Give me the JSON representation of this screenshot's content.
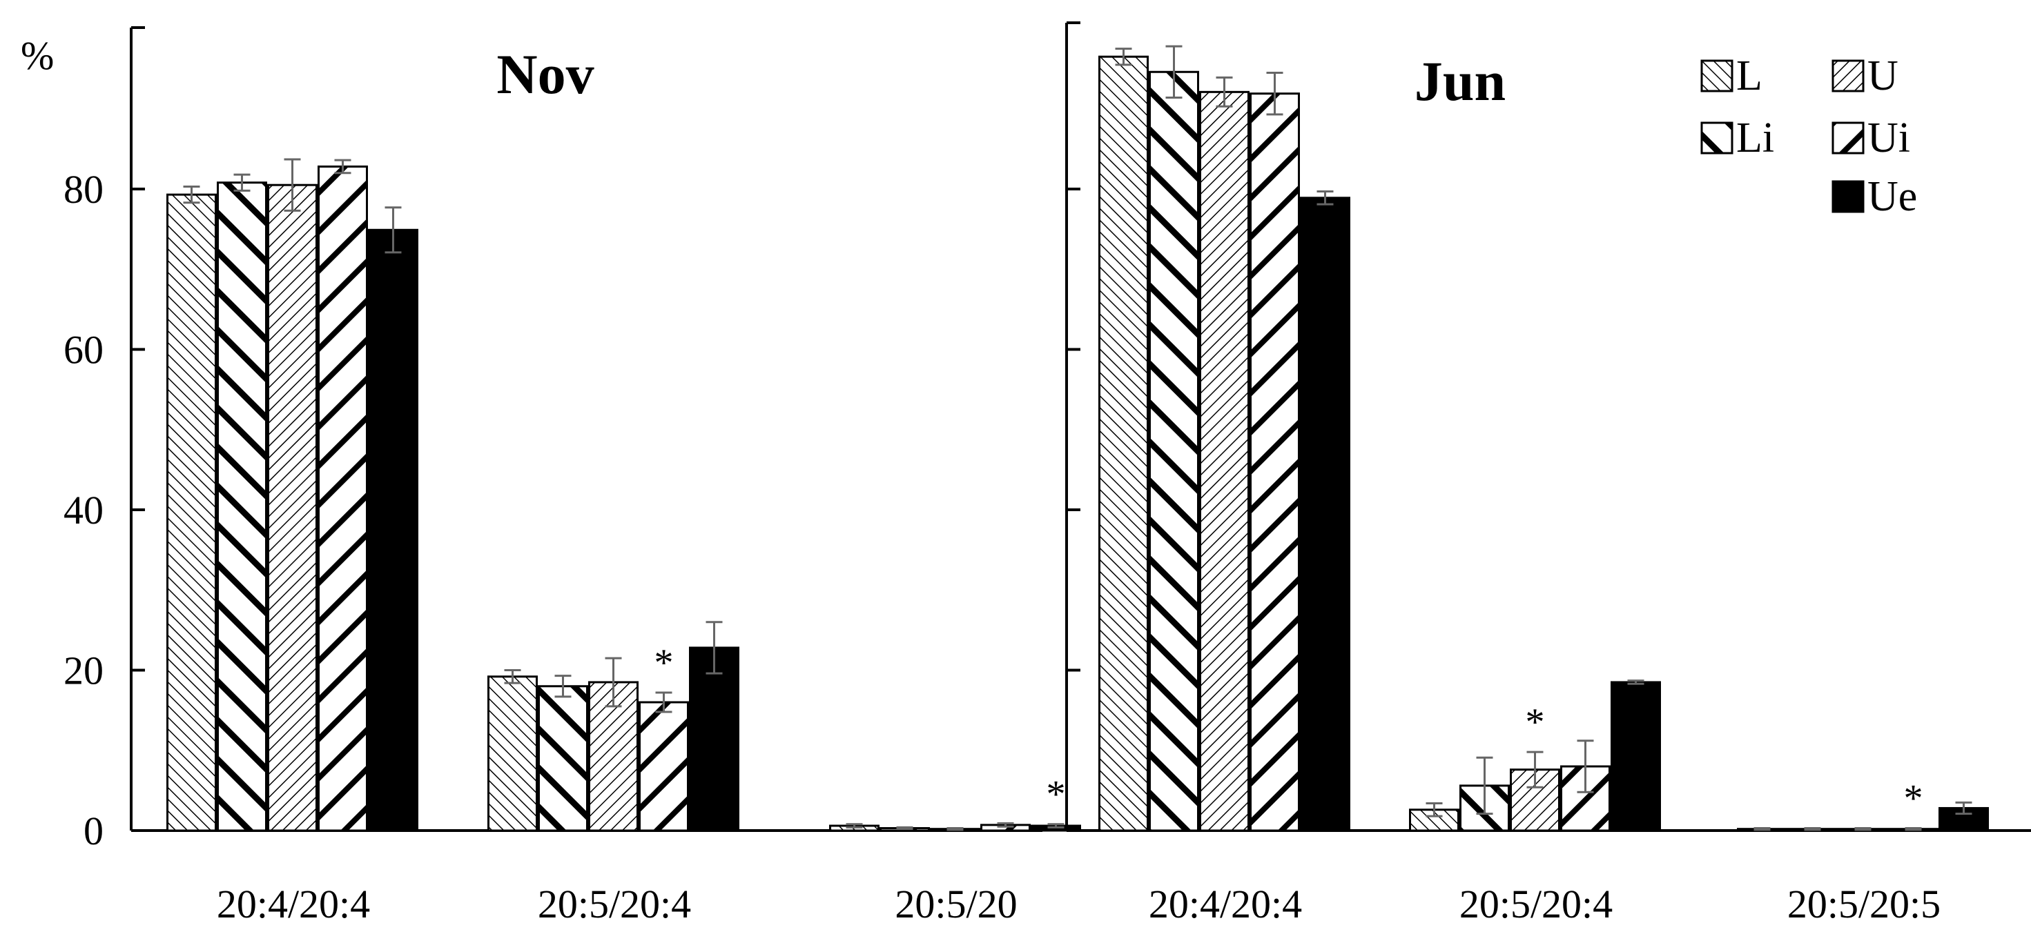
{
  "ylabel": "%",
  "chart_data": [
    {
      "type": "bar",
      "title": "Nov",
      "ylabel": "%",
      "ylim": [
        0,
        100
      ],
      "yticks": [
        "0",
        "20",
        "40",
        "60",
        "80"
      ],
      "categories": [
        "20:4/20:4",
        "20:5/20:4",
        "20:5/20"
      ],
      "series": [
        {
          "name": "L",
          "values": [
            79.3,
            19.2,
            0.6
          ],
          "errors": [
            1.0,
            0.8,
            0.2
          ]
        },
        {
          "name": "Li",
          "values": [
            80.8,
            18.0,
            0.3
          ],
          "errors": [
            1.0,
            1.3,
            0.1
          ]
        },
        {
          "name": "U",
          "values": [
            80.5,
            18.5,
            0.2
          ],
          "errors": [
            3.2,
            3.0,
            0.1
          ]
        },
        {
          "name": "Ui",
          "values": [
            82.8,
            16.0,
            0.7
          ],
          "errors": [
            0.8,
            1.2,
            0.2
          ]
        },
        {
          "name": "Ue",
          "values": [
            74.9,
            22.8,
            0.6
          ],
          "errors": [
            2.8,
            3.2,
            0.2
          ]
        }
      ],
      "annotations": [
        {
          "text": "*",
          "category": "20:5/20:4",
          "series": "Ui"
        },
        {
          "text": "*",
          "category": "20:5/20",
          "series": "Ue"
        }
      ],
      "grid": false
    },
    {
      "type": "bar",
      "title": "Jun",
      "ylim": [
        0,
        100
      ],
      "categories": [
        "20:4/20:4",
        "20:5/20:4",
        "20:5/20:5"
      ],
      "series": [
        {
          "name": "L",
          "values": [
            96.5,
            2.6,
            0.2
          ],
          "errors": [
            1.0,
            0.8,
            0.1
          ]
        },
        {
          "name": "Li",
          "values": [
            94.6,
            5.6,
            0.2
          ],
          "errors": [
            3.2,
            3.5,
            0.1
          ]
        },
        {
          "name": "U",
          "values": [
            92.1,
            7.6,
            0.2
          ],
          "errors": [
            1.8,
            2.2,
            0.1
          ]
        },
        {
          "name": "Ui",
          "values": [
            91.9,
            8.0,
            0.2
          ],
          "errors": [
            2.6,
            3.2,
            0.1
          ]
        },
        {
          "name": "Ue",
          "values": [
            78.9,
            18.5,
            2.8
          ],
          "errors": [
            0.8,
            0.2,
            0.7
          ]
        }
      ],
      "annotations": [
        {
          "text": "*",
          "category": "20:5/20:4",
          "series": "U"
        },
        {
          "text": "*",
          "category": "20:5/20:5",
          "series": "Ui"
        }
      ],
      "legend": {
        "placement": "top-right",
        "labels": [
          "L",
          "U",
          "Li",
          "Ui",
          "Ue"
        ]
      },
      "grid": false
    }
  ],
  "colors": {
    "bar_fill": "#ffffff",
    "bar_stroke": "#000000",
    "ue_fill": "#000000",
    "error_bar": "#666666"
  }
}
